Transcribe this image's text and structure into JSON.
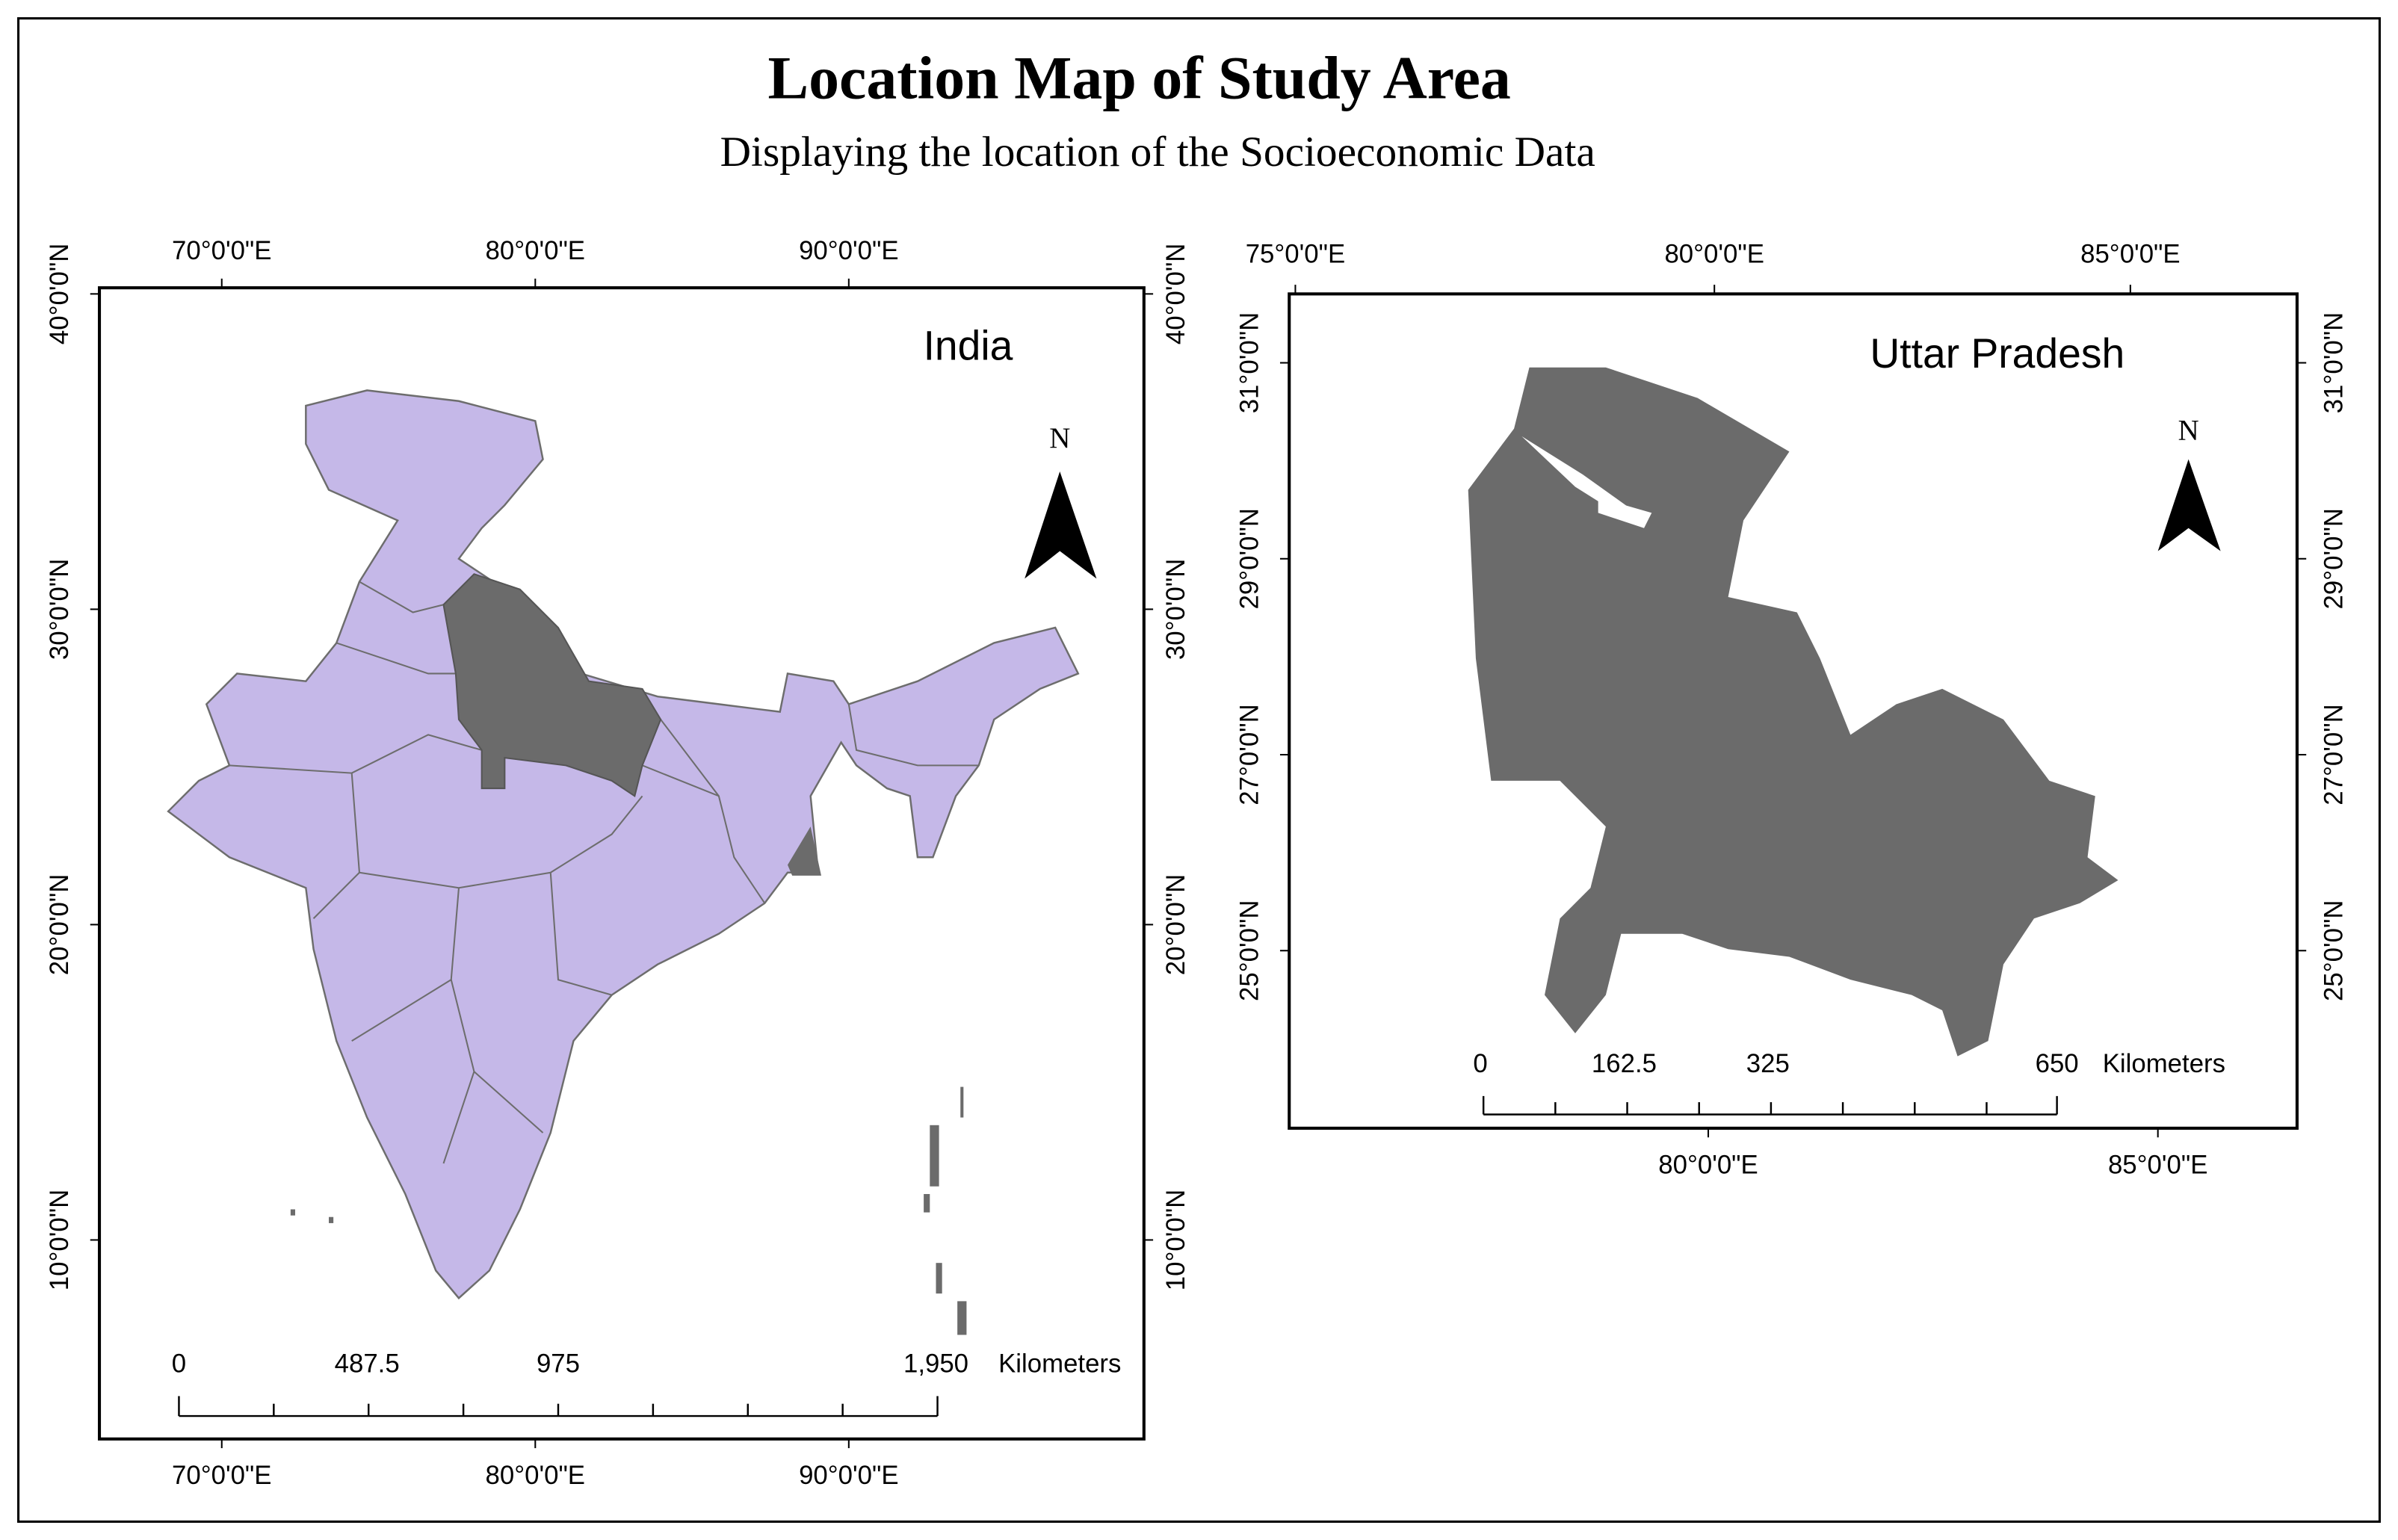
{
  "header": {
    "title": "Location Map of Study Area",
    "subtitle": "Displaying the location of the Socioeconomic Data"
  },
  "maps": [
    {
      "label": "India",
      "north": "N",
      "top_labels": [
        "70°0'0\"E",
        "80°0'0\"E",
        "90°0'0\"E"
      ],
      "bottom_labels": [
        "70°0'0\"E",
        "80°0'0\"E",
        "90°0'0\"E"
      ],
      "left_labels": [
        "40°0'0\"N",
        "30°0'0\"N",
        "20°0'0\"N",
        "10°0'0\"N"
      ],
      "right_labels": [
        "40°0'0\"N",
        "30°0'0\"N",
        "20°0'0\"N",
        "10°0'0\"N"
      ],
      "scale": {
        "labels": [
          "0",
          "487.5",
          "975",
          "1,950"
        ],
        "unit": "Kilometers"
      }
    },
    {
      "label": "Uttar Pradesh",
      "north": "N",
      "top_labels": [
        "75°0'0\"E",
        "80°0'0\"E",
        "85°0'0\"E"
      ],
      "bottom_labels": [
        "80°0'0\"E",
        "85°0'0\"E"
      ],
      "left_labels": [
        "31°0'0\"N",
        "29°0'0\"N",
        "27°0'0\"N",
        "25°0'0\"N"
      ],
      "right_labels": [
        "31°0'0\"N",
        "29°0'0\"N",
        "27°0'0\"N",
        "25°0'0\"N"
      ],
      "scale": {
        "labels": [
          "0",
          "162.5",
          "325",
          "650"
        ],
        "unit": "Kilometers"
      }
    }
  ]
}
